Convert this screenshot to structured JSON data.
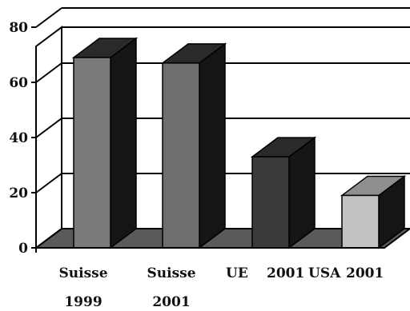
{
  "chart_data": {
    "type": "bar",
    "title": "",
    "xlabel": "",
    "ylabel": "",
    "ylim": [
      0,
      80
    ],
    "yticks": [
      0,
      20,
      40,
      60,
      80
    ],
    "yticks_labels": [
      "0",
      "20",
      "40",
      "60",
      "80"
    ],
    "grid": true,
    "three_d": true,
    "categories": [
      {
        "line1": "Suisse",
        "line2": "1999"
      },
      {
        "line1": "Suisse",
        "line2": "2001"
      },
      {
        "line1": "UE",
        "line2": "2001"
      },
      {
        "line1": "USA",
        "line2": "2001"
      }
    ],
    "values": [
      69,
      67,
      33,
      19
    ],
    "bar_colors": [
      "#7a7a7a",
      "#6e6e6e",
      "#3a3a3a",
      "#c2c2c2"
    ]
  }
}
